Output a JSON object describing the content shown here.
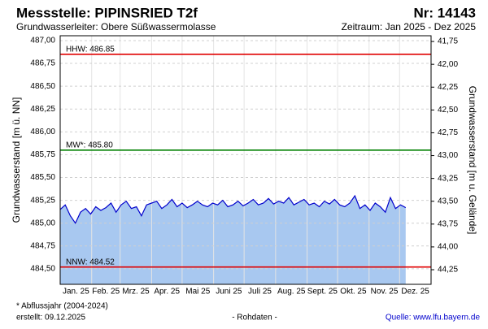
{
  "chart_data": {
    "type": "line",
    "title": "Messstelle: PIPINSRIED T2f",
    "number": "Nr: 14143",
    "aquifer": "Grundwasserleiter:  Obere Süßwassermolasse",
    "period": "Zeitraum: Jan 2025 - Dez 2025",
    "y_label": "Grundwasserstand [m ü. NN]",
    "y2_label": "Grundwasserstand [m u. Gelände]",
    "footnote": "* Abflussjahr (2004-2024)",
    "created": "erstellt:  09.12.2025",
    "raw_note": "- Rohdaten -",
    "source": "Quelle: www.lfu.bayern.de",
    "color": "#0000cc",
    "fill_color": "#a8c8f0",
    "grid": true,
    "xlim": [
      0,
      365
    ],
    "xticks": [
      {
        "value": 0,
        "label": "Jan. 25"
      },
      {
        "value": 31,
        "label": "Feb. 25"
      },
      {
        "value": 59,
        "label": "Mrz. 25"
      },
      {
        "value": 90,
        "label": "Apr. 25"
      },
      {
        "value": 120,
        "label": "Mai 25"
      },
      {
        "value": 151,
        "label": "Juni 25"
      },
      {
        "value": 181,
        "label": "Juli 25"
      },
      {
        "value": 212,
        "label": "Aug. 25"
      },
      {
        "value": 243,
        "label": "Sept. 25"
      },
      {
        "value": 273,
        "label": "Okt. 25"
      },
      {
        "value": 304,
        "label": "Nov. 25"
      },
      {
        "value": 334,
        "label": "Dez. 25"
      }
    ],
    "ylim": [
      484.33,
      487.053
    ],
    "yticks": [
      {
        "value": 484.5,
        "label": "484,50"
      },
      {
        "value": 484.75,
        "label": "484,75"
      },
      {
        "value": 485,
        "label": "485,00"
      },
      {
        "value": 485.25,
        "label": "485,25"
      },
      {
        "value": 485.5,
        "label": "485,50"
      },
      {
        "value": 485.75,
        "label": "485,75"
      },
      {
        "value": 486,
        "label": "486,00"
      },
      {
        "value": 486.25,
        "label": "486,25"
      },
      {
        "value": 486.5,
        "label": "486,50"
      },
      {
        "value": 486.75,
        "label": "486,75"
      },
      {
        "value": 487,
        "label": "487,00"
      }
    ],
    "y2lim": [
      41.687,
      44.41
    ],
    "y2ticks": [
      {
        "value": 41.75,
        "label": "41,75"
      },
      {
        "value": 42,
        "label": "42,00"
      },
      {
        "value": 42.25,
        "label": "42,25"
      },
      {
        "value": 42.5,
        "label": "42,50"
      },
      {
        "value": 42.75,
        "label": "42,75"
      },
      {
        "value": 43,
        "label": "43,00"
      },
      {
        "value": 43.25,
        "label": "43,25"
      },
      {
        "value": 43.5,
        "label": "43,50"
      },
      {
        "value": 43.75,
        "label": "43,75"
      },
      {
        "value": 44,
        "label": "44,00"
      },
      {
        "value": 44.25,
        "label": "44,25"
      }
    ],
    "reference_lines": [
      {
        "label": "HHW: 486.85",
        "value": 486.85,
        "color": "#e00000"
      },
      {
        "label": "MW*: 485.80",
        "value": 485.8,
        "color": "#008000"
      },
      {
        "label": "NNW: 484.52",
        "value": 484.52,
        "color": "#e00000"
      }
    ],
    "x": [
      0,
      5,
      10,
      15,
      20,
      25,
      30,
      35,
      40,
      45,
      50,
      55,
      60,
      65,
      70,
      75,
      80,
      85,
      90,
      95,
      100,
      105,
      110,
      115,
      120,
      125,
      130,
      135,
      140,
      145,
      150,
      155,
      160,
      165,
      170,
      175,
      180,
      185,
      190,
      195,
      200,
      205,
      210,
      215,
      220,
      225,
      230,
      235,
      240,
      245,
      250,
      255,
      260,
      265,
      270,
      275,
      280,
      285,
      290,
      295,
      300,
      305,
      310,
      315,
      320,
      325,
      330,
      335,
      340
    ],
    "values": [
      485.15,
      485.2,
      485.08,
      485.0,
      485.12,
      485.16,
      485.1,
      485.18,
      485.14,
      485.17,
      485.22,
      485.12,
      485.2,
      485.24,
      485.16,
      485.18,
      485.08,
      485.2,
      485.22,
      485.24,
      485.16,
      485.2,
      485.26,
      485.18,
      485.22,
      485.17,
      485.2,
      485.24,
      485.2,
      485.18,
      485.22,
      485.2,
      485.25,
      485.18,
      485.2,
      485.24,
      485.19,
      485.22,
      485.26,
      485.2,
      485.22,
      485.27,
      485.21,
      485.24,
      485.22,
      485.28,
      485.2,
      485.23,
      485.26,
      485.2,
      485.22,
      485.18,
      485.24,
      485.21,
      485.26,
      485.2,
      485.18,
      485.22,
      485.3,
      485.16,
      485.2,
      485.14,
      485.22,
      485.18,
      485.12,
      485.28,
      485.16,
      485.2,
      485.17
    ]
  }
}
